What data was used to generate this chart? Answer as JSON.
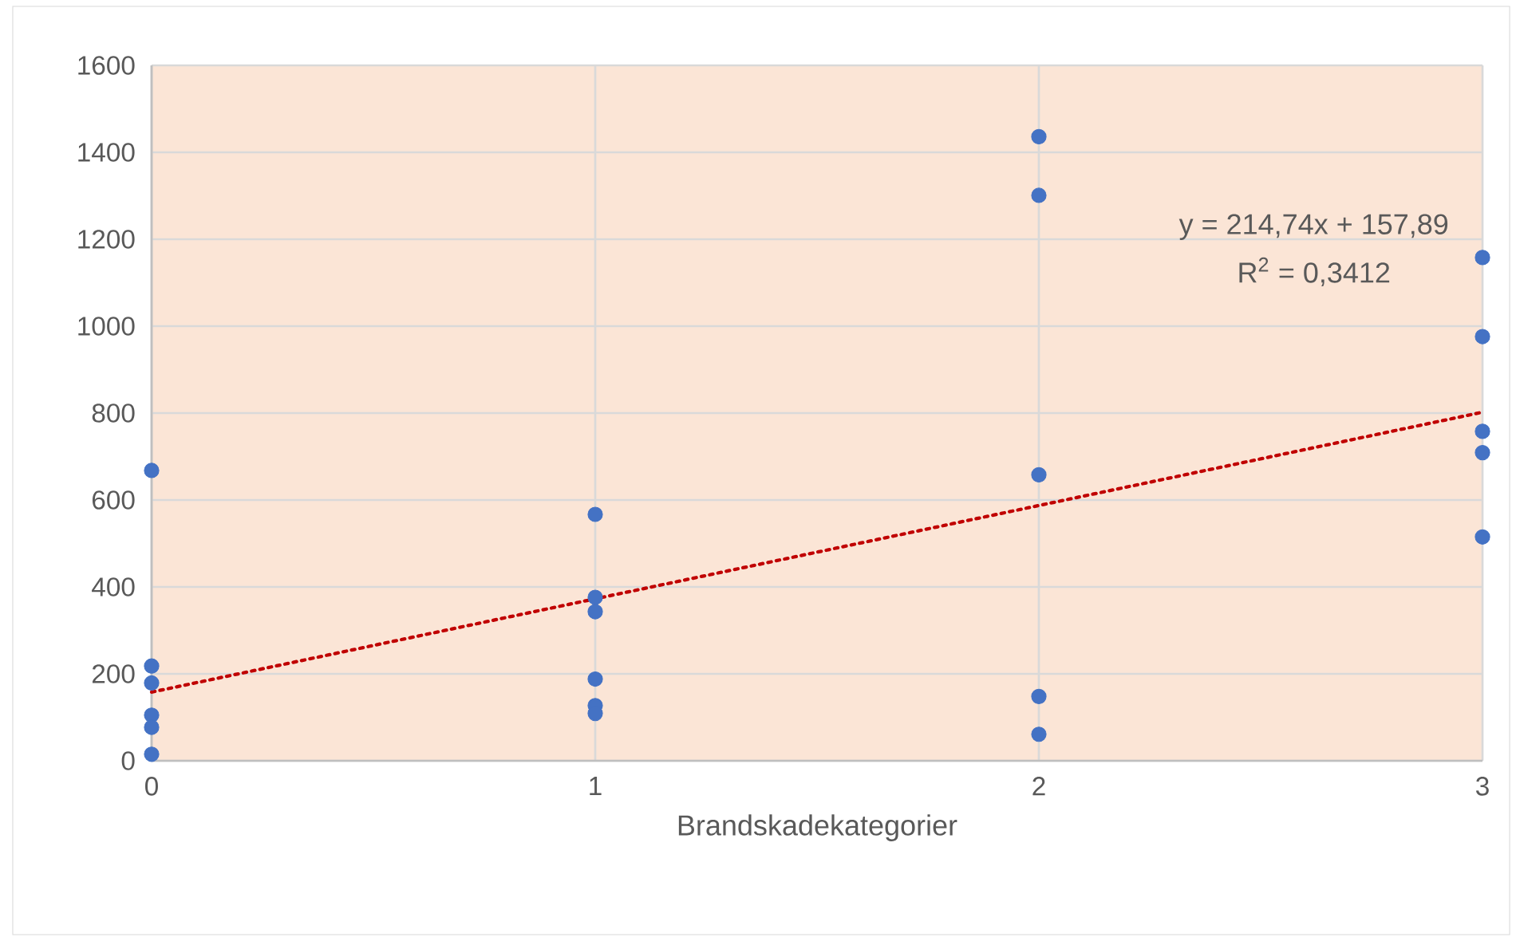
{
  "chart_data": {
    "type": "scatter",
    "xlabel": "Brandskadekategorier",
    "xlim": [
      0,
      3
    ],
    "ylim": [
      0,
      1600
    ],
    "xticks": [
      0,
      1,
      2,
      3
    ],
    "yticks": [
      0,
      200,
      400,
      600,
      800,
      1000,
      1200,
      1400,
      1600
    ],
    "grid": true,
    "marker": "circle",
    "series": [
      {
        "color": "#4472c4",
        "x": [
          0,
          0,
          0,
          0,
          0,
          0,
          1,
          1,
          1,
          1,
          1,
          1,
          2,
          2,
          2,
          2,
          2,
          3,
          3,
          3,
          3,
          3
        ],
        "values": [
          668,
          218,
          179,
          105,
          77,
          15,
          567,
          376,
          343,
          188,
          127,
          109,
          1436,
          1301,
          658,
          148,
          61,
          1158,
          976,
          758,
          709,
          515
        ]
      },
      {
        "type": "line",
        "color": "#c00000",
        "line_style": "dotted",
        "marker": "none",
        "x": [
          0,
          3
        ],
        "values": [
          158,
          802
        ]
      }
    ],
    "annotations": [
      "y = 214,74x + 157,89",
      "R$^{2}$ = 0,3412"
    ]
  }
}
